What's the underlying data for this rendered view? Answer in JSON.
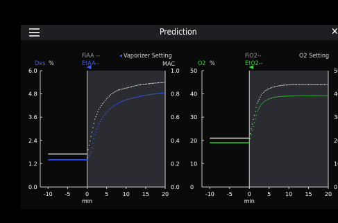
{
  "header": {
    "title": "Prediction"
  },
  "left_chart": {
    "agent_label": "Des",
    "unit": "%",
    "fi_label": "FiAA --",
    "et_label": "EtAA--",
    "setting_label": "Vaporizer Setting",
    "right_axis_label": "MAC",
    "x_ticks": [
      "-10",
      "-5",
      "0",
      "5",
      "10",
      "15",
      "20"
    ],
    "x_unit": "min",
    "y_left_ticks": [
      "6.0",
      "4.8",
      "3.6",
      "2.4",
      "1.2",
      "0.0"
    ],
    "y_right_ticks": [
      "1.0",
      "0.8",
      "0.6",
      "0.4",
      "0.2",
      "0.0"
    ]
  },
  "right_chart": {
    "agent_label": "O2",
    "unit": "%",
    "fi_label": "FiO2--",
    "et_label": "EtO2--",
    "setting_label": "O2 Setting",
    "x_ticks": [
      "-10",
      "-5",
      "0",
      "5",
      "10",
      "15",
      "20"
    ],
    "x_unit": "min",
    "y_left_ticks": [
      "50",
      "40",
      "30",
      "20",
      "10",
      "0"
    ],
    "y_right_ticks": [
      "50",
      "40",
      "30",
      "20",
      "10",
      "0"
    ]
  },
  "colors": {
    "fi": "#d9d9d9",
    "et_aa": "#3b5bff",
    "et_o2": "#39d039",
    "future_bg": "#2a2c31"
  },
  "chart_data": [
    {
      "type": "line",
      "x_range": [
        -12,
        20
      ],
      "y_range": [
        0,
        6.0
      ],
      "series": [
        {
          "x_hist": [
            -10,
            0
          ],
          "y_hist": 1.7,
          "x_pred": [
            1,
            2,
            3,
            4,
            5,
            6,
            7,
            8,
            9,
            10,
            11,
            12,
            13,
            14,
            15,
            16,
            17,
            18,
            19,
            20
          ],
          "y_pred": [
            2.6,
            3.5,
            4.0,
            4.3,
            4.55,
            4.75,
            4.9,
            5.0,
            5.05,
            5.1,
            5.15,
            5.2,
            5.25,
            5.28,
            5.3,
            5.33,
            5.35,
            5.37,
            5.38,
            5.4
          ]
        },
        {
          "x_hist": [
            -10,
            0
          ],
          "y_hist": 1.4,
          "x_pred": [
            1,
            2,
            3,
            4,
            5,
            6,
            7,
            8,
            9,
            10,
            11,
            12,
            13,
            14,
            15,
            16,
            17,
            18,
            19,
            20
          ],
          "y_pred": [
            1.8,
            2.7,
            3.25,
            3.6,
            3.85,
            4.05,
            4.2,
            4.32,
            4.42,
            4.5,
            4.55,
            4.6,
            4.65,
            4.7,
            4.73,
            4.76,
            4.79,
            4.81,
            4.83,
            4.85
          ]
        }
      ]
    },
    {
      "type": "line",
      "x_range": [
        -12,
        20
      ],
      "y_range": [
        0,
        50
      ],
      "series": [
        {
          "x_hist": [
            -10,
            0
          ],
          "y_hist": 21,
          "x_pred": [
            1,
            2,
            3,
            4,
            5,
            6,
            7,
            8,
            9,
            10,
            11,
            12,
            13,
            14,
            15,
            16,
            17,
            18,
            19,
            20
          ],
          "y_pred": [
            29,
            36,
            39.5,
            41.3,
            42.3,
            42.9,
            43.3,
            43.6,
            43.8,
            43.9,
            44,
            44,
            44,
            44,
            44,
            44,
            44,
            44,
            44,
            44
          ]
        },
        {
          "x_hist": [
            -10,
            0
          ],
          "y_hist": 19,
          "x_pred": [
            1,
            2,
            3,
            4,
            5,
            6,
            7,
            8,
            9,
            10,
            11,
            12,
            13,
            14,
            15,
            16,
            17,
            18,
            19,
            20
          ],
          "y_pred": [
            26,
            32.5,
            35.5,
            37,
            37.9,
            38.4,
            38.7,
            38.9,
            39,
            39.1,
            39.1,
            39.2,
            39.2,
            39.2,
            39.2,
            39.2,
            39.2,
            39.2,
            39.2,
            39.2
          ]
        }
      ]
    }
  ]
}
